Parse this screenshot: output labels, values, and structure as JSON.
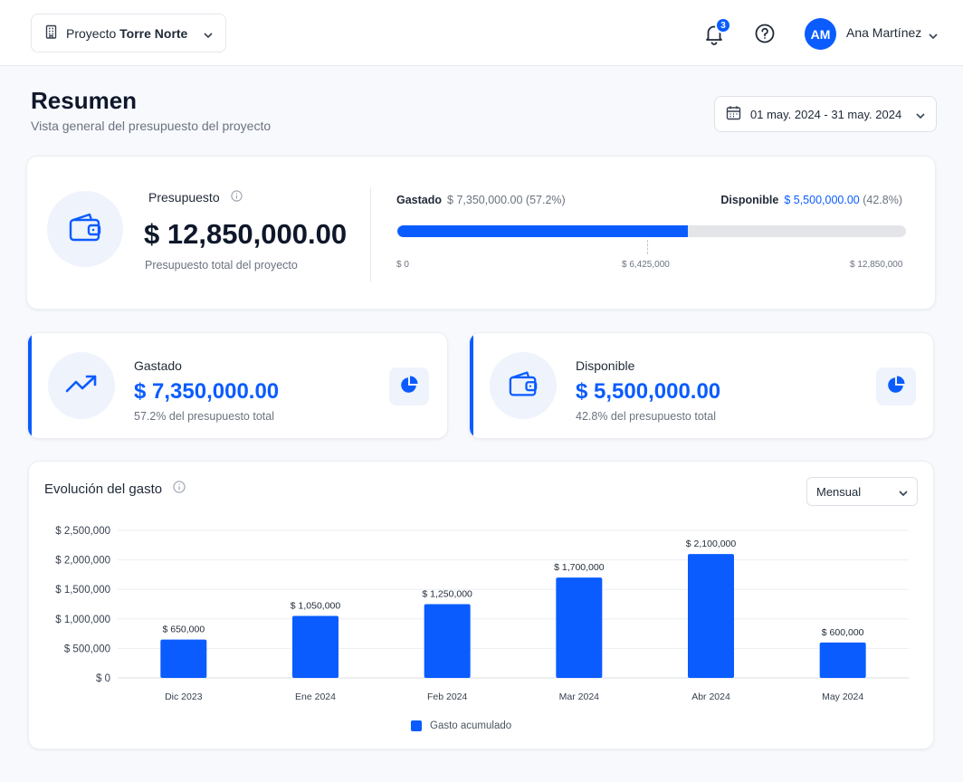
{
  "header": {
    "project_prefix": "Proyecto",
    "project_name": "Torre Norte",
    "notification_count": "3",
    "user_initials": "AM",
    "user_name": "Ana Martínez"
  },
  "page": {
    "title": "Resumen",
    "subtitle": "Vista general del presupuesto del proyecto",
    "date_range": "01 may. 2024 - 31 may. 2024"
  },
  "budget": {
    "label": "Presupuesto",
    "value": "$ 12,850,000.00",
    "note": "Presupuesto total del proyecto",
    "spent_label": "Gastado",
    "spent_amount": "$ 7,350,000.00",
    "spent_pct": "(57.2%)",
    "available_label": "Disponible",
    "available_amount": "$ 5,500,000.00",
    "available_pct": "(42.8%)",
    "progress_fraction": 0.572,
    "scale_min": "$ 0",
    "scale_mid": "$ 6,425,000",
    "scale_max": "$ 12,850,000"
  },
  "stats": [
    {
      "label": "Gastado",
      "value": "$ 7,350,000.00",
      "note": "57.2% del presupuesto total",
      "icon": "trending-up-icon"
    },
    {
      "label": "Disponible",
      "value": "$ 5,500,000.00",
      "note": "42.8% del presupuesto total",
      "icon": "wallet-icon"
    }
  ],
  "chart_section": {
    "title": "Evolución del gasto",
    "period": "Mensual"
  },
  "colors": {
    "accent": "#0b5cff",
    "track": "#e4e5e8",
    "icon_bg": "#eef3fc"
  },
  "chart_data": {
    "type": "bar",
    "categories": [
      "Dic 2023",
      "Ene 2024",
      "Feb 2024",
      "Mar 2024",
      "Abr 2024",
      "May 2024"
    ],
    "series": [
      {
        "name": "Gasto acumulado",
        "values": [
          650000,
          1050000,
          1250000,
          1700000,
          2100000,
          600000
        ]
      }
    ],
    "data_labels": [
      "$ 650,000",
      "$ 1,050,000",
      "$ 1,250,000",
      "$ 1,700,000",
      "$ 2,100,000",
      "$ 600,000"
    ],
    "ytick_values": [
      0,
      500000,
      1000000,
      1500000,
      2000000,
      2500000
    ],
    "ytick_labels": [
      "$ 0",
      "$ 500,000",
      "$ 1,000,000",
      "$ 1,500,000",
      "$ 2,000,000",
      "$ 2,500,000"
    ],
    "ylim": [
      0,
      2500000
    ],
    "grid": true,
    "legend_position": "bottom-center",
    "color": "#0b5cff"
  }
}
